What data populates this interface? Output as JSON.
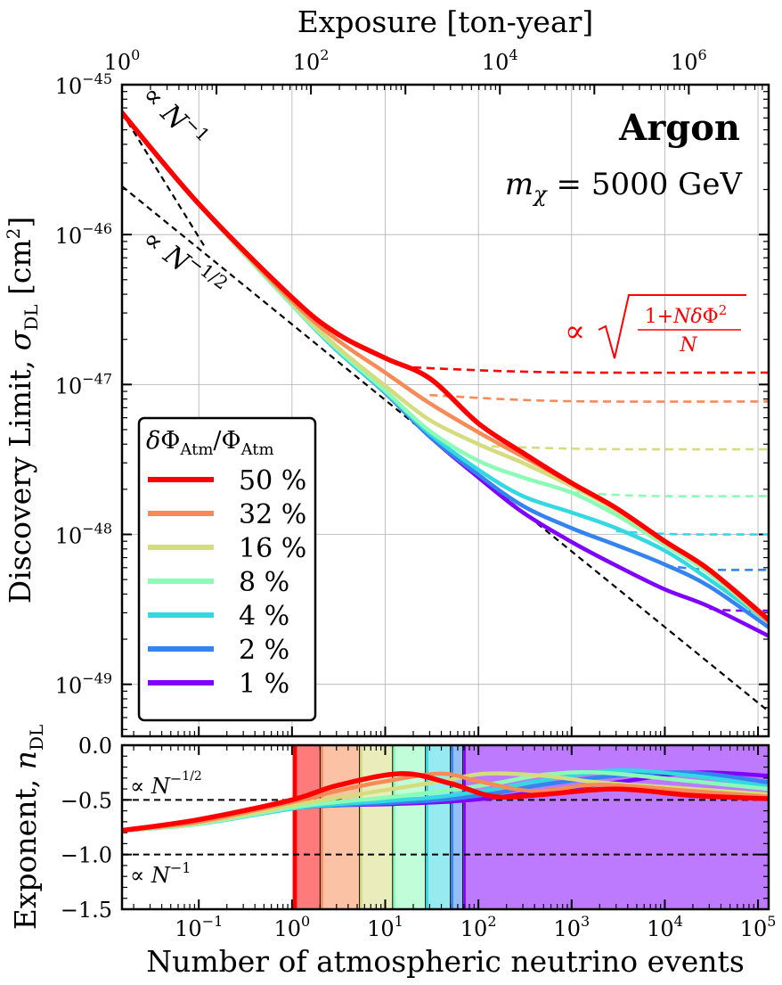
{
  "chart_data": [
    {
      "type": "line",
      "panel": "main",
      "top_axis": {
        "title": "Exposure [ton-year]",
        "scale": "log",
        "ticks": [
          {
            "value": 1,
            "base": "10",
            "exp": "0"
          },
          {
            "value": 100,
            "base": "10",
            "exp": "2"
          },
          {
            "value": 10000,
            "base": "10",
            "exp": "4"
          },
          {
            "value": 1000000,
            "base": "10",
            "exp": "6"
          }
        ],
        "xlim": [
          1,
          7000000
        ]
      },
      "x_scale": "log",
      "xlim": [
        0.015,
        130000
      ],
      "ylabel": "Discovery Limit, σDL [cm²]",
      "y_scale": "log",
      "ylim": [
        4.5e-50,
        1e-45
      ],
      "y_ticks": [
        {
          "value": 1e-45,
          "base": "10",
          "exp": "−45"
        },
        {
          "value": 1e-46,
          "base": "10",
          "exp": "−46"
        },
        {
          "value": 1e-47,
          "base": "10",
          "exp": "−47"
        },
        {
          "value": 1e-48,
          "base": "10",
          "exp": "−48"
        },
        {
          "value": 1e-49,
          "base": "10",
          "exp": "−49"
        }
      ],
      "grid": true,
      "annotations": {
        "target": "Argon",
        "mass_label": "mχ = 5000 GeV",
        "slope_n1": "∝ N−1",
        "slope_nhalf": "∝ N−1/2",
        "floor_formula": "∝ √((1+NδΦ²)/N)"
      },
      "legend": {
        "title": "δΦAtm/ΦAtm",
        "placement": "lower-left",
        "entries": [
          "50 %",
          "32 %",
          "16 %",
          "8 %",
          "4 %",
          "2 %",
          "1 %"
        ]
      },
      "reference_lines": [
        {
          "label": "∝ N^-1",
          "points": [
            [
              0.015,
              6.5e-46
            ],
            [
              0.12,
              8e-47
            ]
          ]
        },
        {
          "label": "∝ N^-1/2",
          "points": [
            [
              0.015,
              2.1e-46
            ],
            [
              130000,
              6.6e-50
            ]
          ]
        }
      ],
      "series": [
        {
          "name": "50 %",
          "color": "#ff0000",
          "uncertainty": 0.5,
          "x": [
            0.015,
            0.1,
            1,
            3,
            10,
            30,
            100,
            300,
            1000,
            3000,
            10000,
            30000,
            130000
          ],
          "y": [
            6.5e-46,
            1.6e-46,
            3.8e-47,
            2.2e-47,
            1.5e-47,
            1.1e-47,
            5.5e-48,
            3.5e-48,
            2.2e-48,
            1.5e-48,
            9e-49,
            5.8e-49,
            2.7e-49
          ],
          "floor": {
            "x": [
              20,
              130000
            ],
            "y": [
              1.3e-47,
              1.2e-47
            ]
          }
        },
        {
          "name": "32 %",
          "color": "#f78a55",
          "uncertainty": 0.32,
          "x": [
            0.015,
            0.1,
            1,
            3,
            10,
            30,
            100,
            300,
            1000,
            3000,
            10000,
            30000,
            130000
          ],
          "y": [
            6.5e-46,
            1.6e-46,
            3.6e-47,
            2e-47,
            1.2e-47,
            7.5e-48,
            4.8e-48,
            3.3e-48,
            2.2e-48,
            1.5e-48,
            9e-49,
            5.8e-49,
            2.6e-49
          ],
          "floor": {
            "x": [
              30,
              130000
            ],
            "y": [
              8.5e-48,
              7.7e-48
            ]
          }
        },
        {
          "name": "16 %",
          "color": "#d4dc7e",
          "uncertainty": 0.16,
          "x": [
            0.015,
            0.1,
            1,
            3,
            10,
            30,
            100,
            300,
            1000,
            3000,
            10000,
            30000,
            130000
          ],
          "y": [
            6.5e-46,
            1.6e-46,
            3.5e-47,
            1.8e-47,
            9.8e-48,
            5.8e-48,
            4e-48,
            3e-48,
            2.1e-48,
            1.45e-48,
            8.8e-49,
            5.7e-49,
            2.6e-49
          ],
          "floor": {
            "x": [
              100,
              130000
            ],
            "y": [
              3.9e-48,
              3.7e-48
            ]
          }
        },
        {
          "name": "8 %",
          "color": "#8bfcb6",
          "uncertainty": 0.08,
          "x": [
            0.015,
            0.1,
            1,
            3,
            10,
            30,
            100,
            300,
            1000,
            3000,
            10000,
            30000,
            130000
          ],
          "y": [
            6.5e-46,
            1.6e-46,
            3.4e-47,
            1.75e-47,
            9.1e-48,
            4.9e-48,
            3.1e-48,
            2.4e-48,
            1.9e-48,
            1.35e-48,
            8.5e-49,
            5.5e-49,
            2.6e-49
          ],
          "floor": {
            "x": [
              1000,
              130000
            ],
            "y": [
              1.9e-48,
              1.8e-48
            ]
          }
        },
        {
          "name": "4 %",
          "color": "#33d9e0",
          "uncertainty": 0.04,
          "x": [
            0.015,
            0.1,
            1,
            3,
            10,
            30,
            100,
            300,
            1000,
            3000,
            10000,
            30000,
            130000
          ],
          "y": [
            6.5e-46,
            1.6e-46,
            3.4e-47,
            1.7e-47,
            8.9e-48,
            4.7e-48,
            2.7e-48,
            1.8e-48,
            1.4e-48,
            1.1e-48,
            7.8e-49,
            5e-49,
            2.6e-49
          ],
          "floor": {
            "x": [
              3000,
              130000
            ],
            "y": [
              1.05e-48,
              1e-48
            ]
          }
        },
        {
          "name": "2 %",
          "color": "#3383f0",
          "uncertainty": 0.02,
          "x": [
            0.015,
            0.1,
            1,
            3,
            10,
            30,
            100,
            300,
            1000,
            3000,
            10000,
            30000,
            130000
          ],
          "y": [
            6.5e-46,
            1.6e-46,
            3.4e-47,
            1.7e-47,
            8.8e-48,
            4.5e-48,
            2.5e-48,
            1.55e-48,
            1.1e-48,
            8.5e-49,
            6.3e-49,
            4.5e-49,
            2.4e-49
          ],
          "floor": {
            "x": [
              10000,
              130000
            ],
            "y": [
              6.2e-49,
              5.8e-49
            ]
          }
        },
        {
          "name": "1 %",
          "color": "#8000ff",
          "uncertainty": 0.01,
          "x": [
            0.015,
            0.1,
            1,
            3,
            10,
            30,
            100,
            300,
            1000,
            3000,
            10000,
            30000,
            130000
          ],
          "y": [
            6.5e-46,
            1.6e-46,
            3.4e-47,
            1.7e-47,
            8.8e-48,
            4.5e-48,
            2.4e-48,
            1.4e-48,
            8.9e-49,
            6.2e-49,
            4.3e-49,
            3.3e-49,
            2.1e-49
          ],
          "floor": {
            "x": [
              30000,
              130000
            ],
            "y": [
              3.2e-49,
              3.1e-49
            ]
          }
        }
      ]
    },
    {
      "type": "line",
      "panel": "exponent",
      "xlabel": "Number of atmospheric neutrino events",
      "ylabel": "Exponent, nDL",
      "x_scale": "log",
      "xlim": [
        0.015,
        130000
      ],
      "x_ticks": [
        {
          "value": 0.1,
          "base": "10",
          "exp": "−1"
        },
        {
          "value": 1,
          "base": "10",
          "exp": "0"
        },
        {
          "value": 10,
          "base": "10",
          "exp": "1"
        },
        {
          "value": 100,
          "base": "10",
          "exp": "2"
        },
        {
          "value": 1000,
          "base": "10",
          "exp": "3"
        },
        {
          "value": 10000,
          "base": "10",
          "exp": "4"
        },
        {
          "value": 100000,
          "base": "10",
          "exp": "5"
        }
      ],
      "ylim": [
        -1.5,
        0.0
      ],
      "y_ticks": [
        {
          "value": 0.0,
          "label": "0.0"
        },
        {
          "value": -0.5,
          "label": "−0.5"
        },
        {
          "value": -1.0,
          "label": "−1.0"
        },
        {
          "value": -1.5,
          "label": "−1.5"
        }
      ],
      "reference_lines": [
        {
          "y": -0.5,
          "label": "∝ N^-1/2"
        },
        {
          "y": -1.0,
          "label": "∝ N^-1"
        }
      ],
      "shaded_regions": [
        {
          "x": [
            1.05,
            2.0
          ],
          "color": "#ff0000"
        },
        {
          "x": [
            2.0,
            5.3
          ],
          "color": "#f78a55"
        },
        {
          "x": [
            5.3,
            12.0
          ],
          "color": "#d4dc7e"
        },
        {
          "x": [
            12.0,
            27.0
          ],
          "color": "#8bfcb6"
        },
        {
          "x": [
            27.0,
            50.0
          ],
          "color": "#33d9e0"
        },
        {
          "x": [
            50.0,
            68.0
          ],
          "color": "#3383f0"
        },
        {
          "x": [
            68.0,
            130000
          ],
          "color": "#8000ff"
        }
      ],
      "region_boundaries": [
        1.05,
        2.0,
        5.3,
        12.0,
        27.0,
        50.0,
        68.0
      ],
      "series": [
        {
          "name": "50 %",
          "color": "#ff0000",
          "x": [
            0.015,
            0.1,
            1,
            3,
            15,
            50,
            150,
            500,
            3000,
            20000,
            130000
          ],
          "y": [
            -0.78,
            -0.68,
            -0.5,
            -0.37,
            -0.26,
            -0.35,
            -0.47,
            -0.45,
            -0.4,
            -0.46,
            -0.49
          ]
        },
        {
          "name": "32 %",
          "color": "#f78a55",
          "x": [
            0.015,
            0.1,
            1,
            3,
            10,
            40,
            100,
            400,
            2000,
            20000,
            130000
          ],
          "y": [
            -0.78,
            -0.7,
            -0.52,
            -0.42,
            -0.33,
            -0.26,
            -0.33,
            -0.42,
            -0.36,
            -0.42,
            -0.47
          ]
        },
        {
          "name": "16 %",
          "color": "#d4dc7e",
          "x": [
            0.015,
            0.1,
            1,
            3,
            10,
            40,
            120,
            500,
            2000,
            20000,
            130000
          ],
          "y": [
            -0.78,
            -0.71,
            -0.55,
            -0.48,
            -0.41,
            -0.33,
            -0.26,
            -0.28,
            -0.34,
            -0.4,
            -0.45
          ]
        },
        {
          "name": "8 %",
          "color": "#8bfcb6",
          "x": [
            0.015,
            0.1,
            1,
            3,
            10,
            40,
            150,
            500,
            2000,
            20000,
            130000
          ],
          "y": [
            -0.78,
            -0.72,
            -0.57,
            -0.52,
            -0.48,
            -0.42,
            -0.35,
            -0.27,
            -0.25,
            -0.33,
            -0.4
          ]
        },
        {
          "name": "4 %",
          "color": "#33d9e0",
          "x": [
            0.015,
            0.1,
            1,
            3,
            10,
            40,
            150,
            500,
            3000,
            20000,
            130000
          ],
          "y": [
            -0.78,
            -0.72,
            -0.58,
            -0.54,
            -0.51,
            -0.47,
            -0.4,
            -0.32,
            -0.23,
            -0.28,
            -0.38
          ]
        },
        {
          "name": "2 %",
          "color": "#3383f0",
          "x": [
            0.015,
            0.1,
            1,
            3,
            10,
            40,
            150,
            500,
            3000,
            20000,
            130000
          ],
          "y": [
            -0.78,
            -0.72,
            -0.58,
            -0.55,
            -0.53,
            -0.5,
            -0.44,
            -0.36,
            -0.28,
            -0.25,
            -0.34
          ]
        },
        {
          "name": "1 %",
          "color": "#8000ff",
          "x": [
            0.015,
            0.1,
            1,
            3,
            10,
            40,
            150,
            500,
            3000,
            20000,
            130000
          ],
          "y": [
            -0.78,
            -0.72,
            -0.58,
            -0.55,
            -0.54,
            -0.52,
            -0.48,
            -0.42,
            -0.34,
            -0.25,
            -0.28
          ]
        }
      ]
    }
  ]
}
